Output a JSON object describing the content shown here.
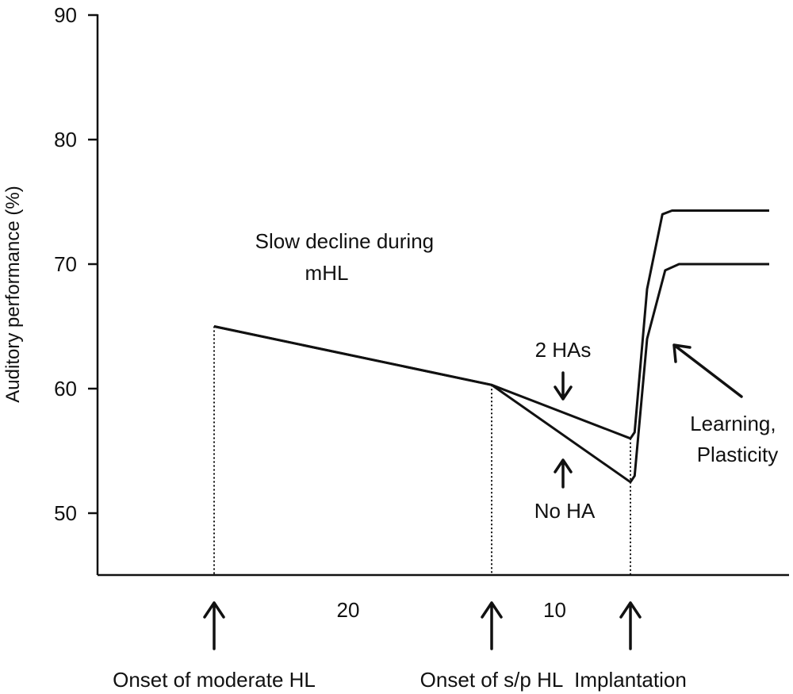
{
  "chart_data": {
    "type": "line",
    "ylabel": "Auditory performance (%)",
    "ylim": [
      45,
      90
    ],
    "yticks": [
      50,
      60,
      70,
      80,
      90
    ],
    "grid": false,
    "x_axis": {
      "timeline_years": true
    },
    "x_markers": [
      {
        "year": 0,
        "label": "Onset of moderate HL"
      },
      {
        "year": 20,
        "label": "Onset of s/p HL"
      },
      {
        "year": 30,
        "label": "Implantation"
      }
    ],
    "interval_labels": [
      {
        "text": "20",
        "from": 0,
        "to": 20
      },
      {
        "text": "10",
        "from": 20,
        "to": 30
      }
    ],
    "series": [
      {
        "points": [
          [
            0,
            65
          ],
          [
            20,
            60.3
          ],
          [
            30,
            56
          ],
          [
            30.3,
            56.5
          ],
          [
            31.2,
            68
          ],
          [
            32.3,
            74
          ],
          [
            33,
            74.3
          ],
          [
            40,
            74.3
          ]
        ]
      },
      {
        "points": [
          [
            0,
            65
          ],
          [
            20,
            60.3
          ],
          [
            30,
            52.5
          ],
          [
            30.3,
            53
          ],
          [
            31.2,
            64
          ],
          [
            32.5,
            69.5
          ],
          [
            33.5,
            70
          ],
          [
            40,
            70
          ]
        ]
      }
    ],
    "annotations": [
      {
        "id": "slow_decline",
        "lines": [
          "Slow decline during",
          "mHL"
        ]
      },
      {
        "id": "two_has",
        "text": "2 HAs"
      },
      {
        "id": "no_ha",
        "text": "No HA"
      },
      {
        "id": "learning",
        "lines": [
          "Learning,",
          "Plasticity"
        ]
      }
    ]
  }
}
